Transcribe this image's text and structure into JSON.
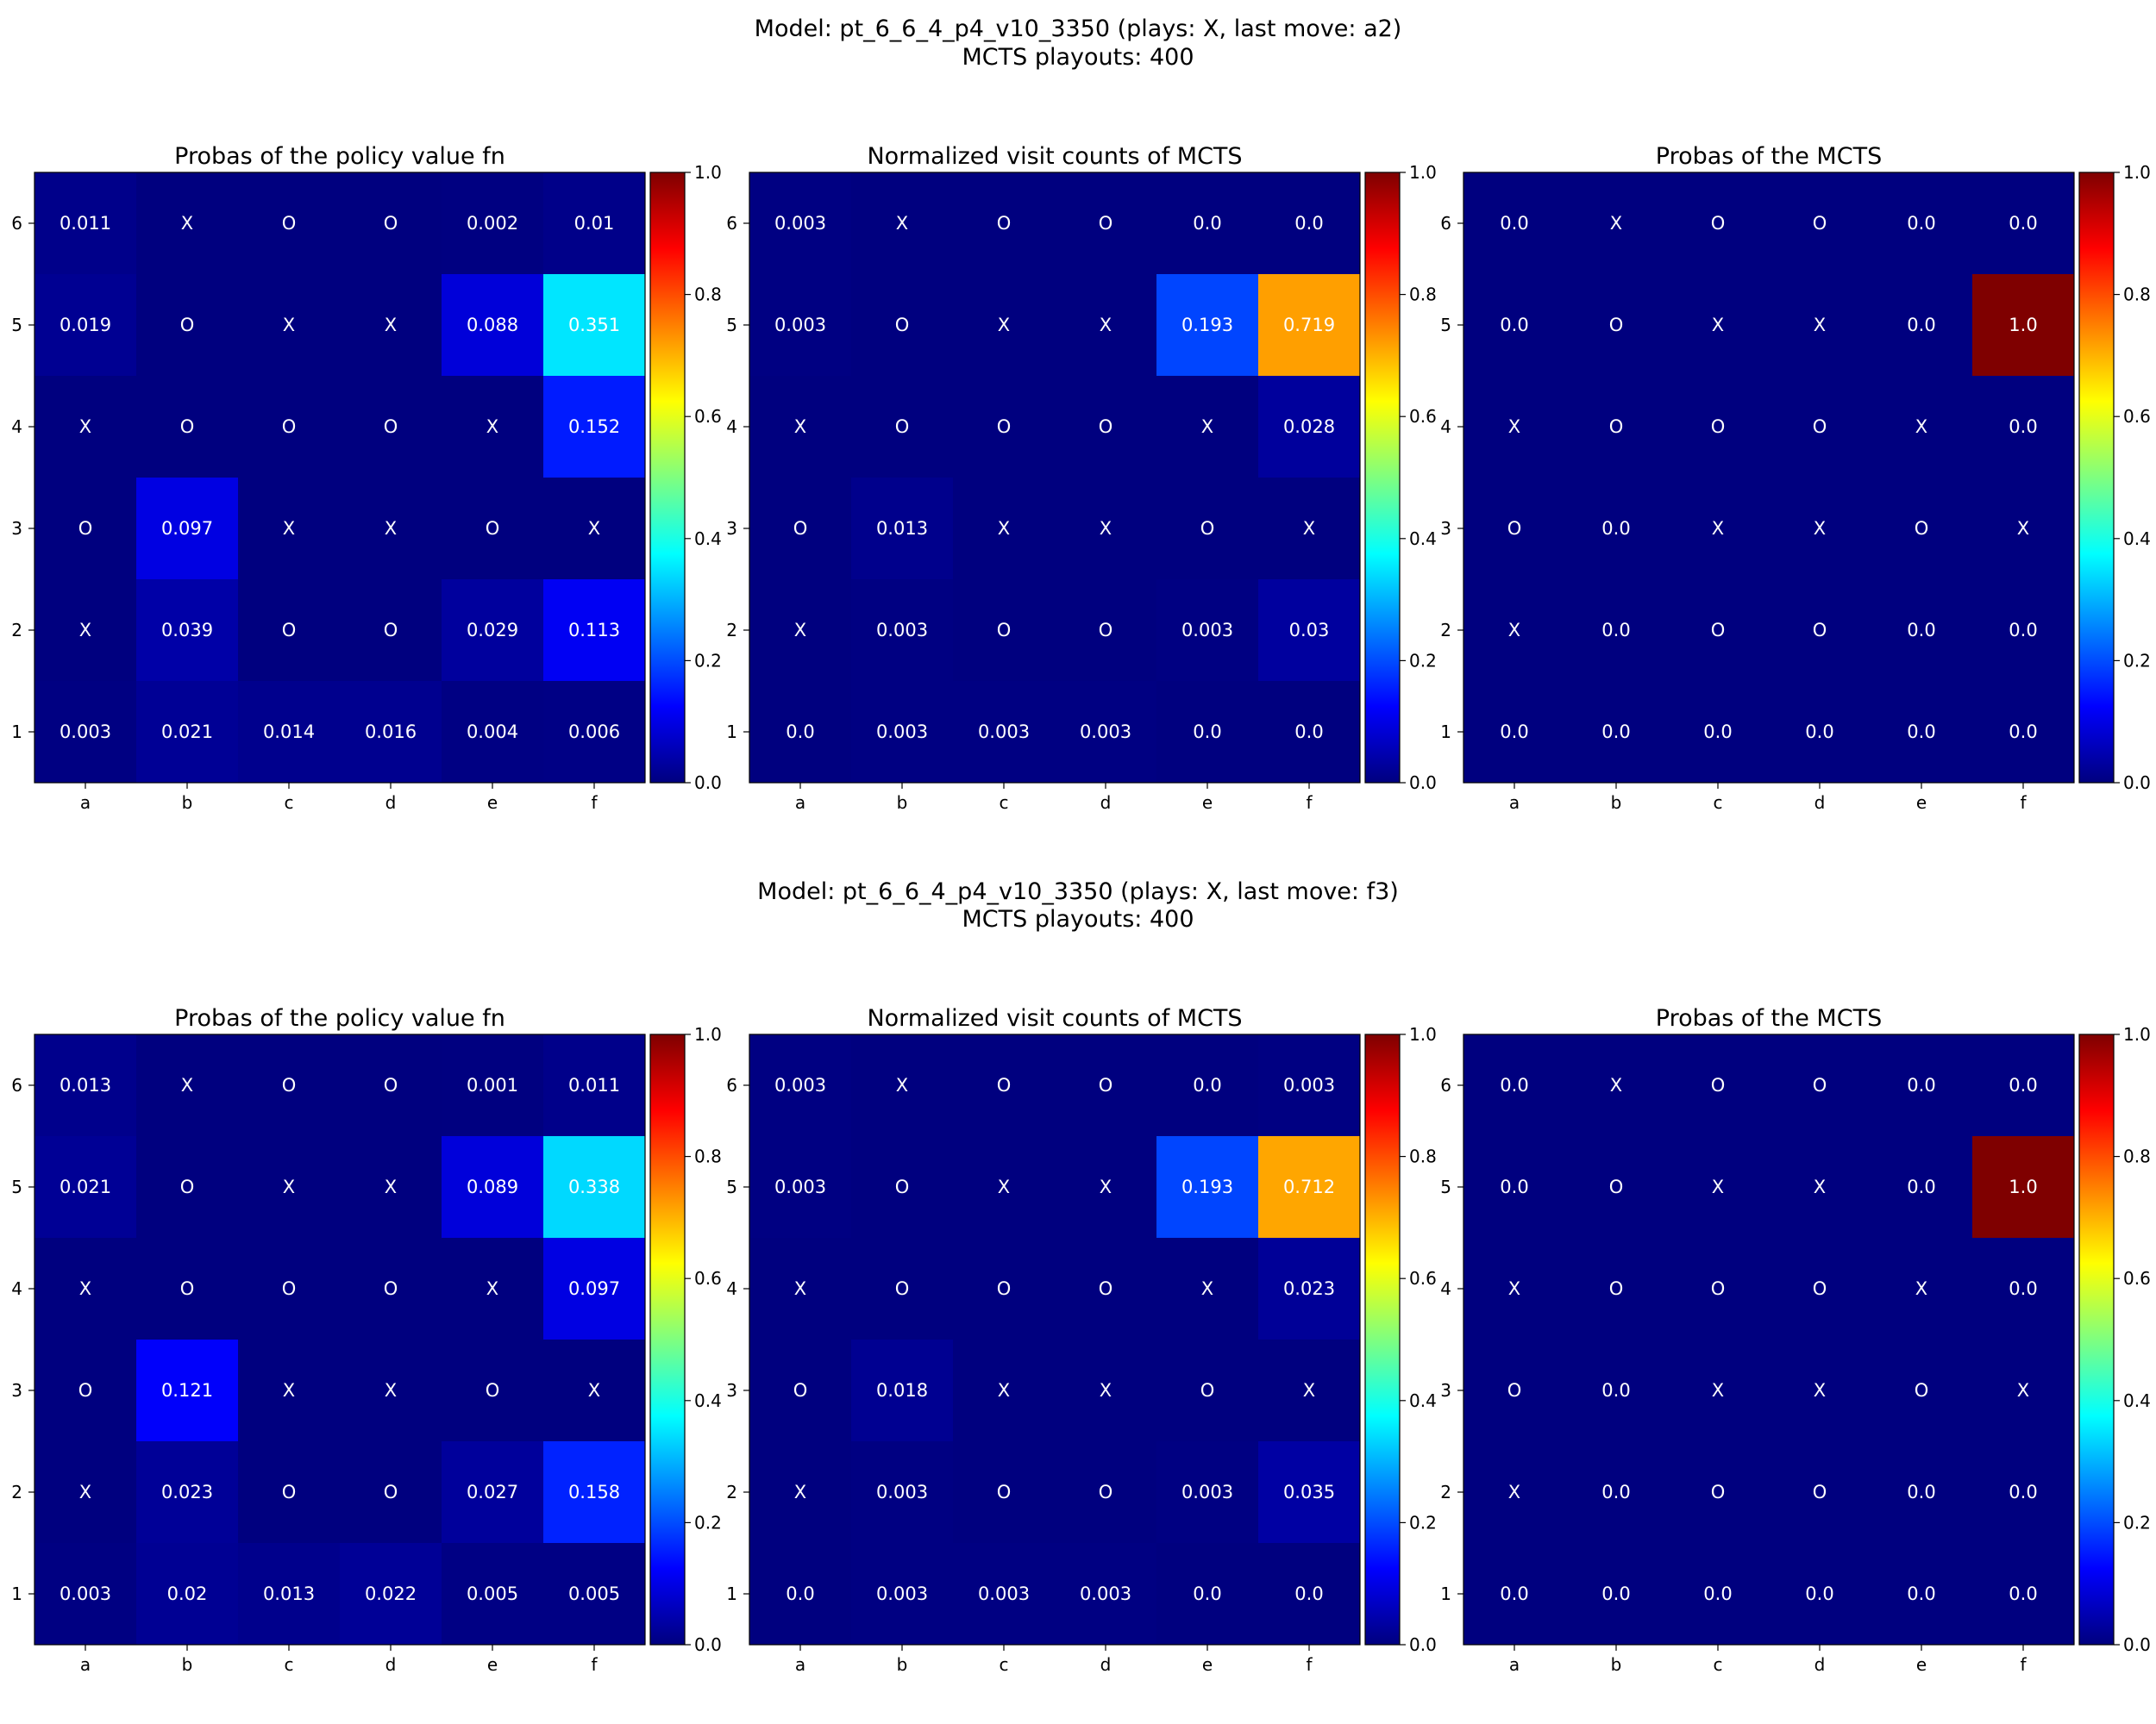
{
  "figure": {
    "rows": [
      {
        "suptitle_lines": [
          "Model: pt_6_6_4_p4_v10_3350 (plays: X, last move: a2)",
          "MCTS playouts: 400"
        ]
      },
      {
        "suptitle_lines": [
          "Model: pt_6_6_4_p4_v10_3350 (plays: X, last move: f3)",
          "MCTS playouts: 400"
        ]
      }
    ]
  },
  "colormap": {
    "name": "jet",
    "stops": [
      "#00007f",
      "#0000ff",
      "#007fff",
      "#00ffff",
      "#7fff7f",
      "#ffff00",
      "#ff7f00",
      "#ff0000",
      "#7f0000"
    ]
  },
  "chart_data": [
    {
      "type": "heatmap",
      "title": "Probas of the policy value fn",
      "x_labels": [
        "a",
        "b",
        "c",
        "d",
        "e",
        "f"
      ],
      "y_labels": [
        "6",
        "5",
        "4",
        "3",
        "2",
        "1"
      ],
      "colorbar": {
        "range": [
          0,
          1
        ],
        "ticks": [
          "0.0",
          "0.2",
          "0.4",
          "0.6",
          "0.8",
          "1.0"
        ]
      },
      "cells": [
        [
          "0.011",
          "X",
          "O",
          "O",
          "0.002",
          "0.01"
        ],
        [
          "0.019",
          "O",
          "X",
          "X",
          "0.088",
          "0.351"
        ],
        [
          "X",
          "O",
          "O",
          "O",
          "X",
          "0.152"
        ],
        [
          "O",
          "0.097",
          "X",
          "X",
          "O",
          "X"
        ],
        [
          "X",
          "0.039",
          "O",
          "O",
          "0.029",
          "0.113"
        ],
        [
          "0.003",
          "0.021",
          "0.014",
          "0.016",
          "0.004",
          "0.006"
        ]
      ]
    },
    {
      "type": "heatmap",
      "title": "Normalized visit counts of MCTS",
      "x_labels": [
        "a",
        "b",
        "c",
        "d",
        "e",
        "f"
      ],
      "y_labels": [
        "6",
        "5",
        "4",
        "3",
        "2",
        "1"
      ],
      "colorbar": {
        "range": [
          0,
          1
        ],
        "ticks": [
          "0.0",
          "0.2",
          "0.4",
          "0.6",
          "0.8",
          "1.0"
        ]
      },
      "cells": [
        [
          "0.003",
          "X",
          "O",
          "O",
          "0.0",
          "0.0"
        ],
        [
          "0.003",
          "O",
          "X",
          "X",
          "0.193",
          "0.719"
        ],
        [
          "X",
          "O",
          "O",
          "O",
          "X",
          "0.028"
        ],
        [
          "O",
          "0.013",
          "X",
          "X",
          "O",
          "X"
        ],
        [
          "X",
          "0.003",
          "O",
          "O",
          "0.003",
          "0.03"
        ],
        [
          "0.0",
          "0.003",
          "0.003",
          "0.003",
          "0.0",
          "0.0"
        ]
      ]
    },
    {
      "type": "heatmap",
      "title": "Probas of the MCTS",
      "x_labels": [
        "a",
        "b",
        "c",
        "d",
        "e",
        "f"
      ],
      "y_labels": [
        "6",
        "5",
        "4",
        "3",
        "2",
        "1"
      ],
      "colorbar": {
        "range": [
          0,
          1
        ],
        "ticks": [
          "0.0",
          "0.2",
          "0.4",
          "0.6",
          "0.8",
          "1.0"
        ]
      },
      "cells": [
        [
          "0.0",
          "X",
          "O",
          "O",
          "0.0",
          "0.0"
        ],
        [
          "0.0",
          "O",
          "X",
          "X",
          "0.0",
          "1.0"
        ],
        [
          "X",
          "O",
          "O",
          "O",
          "X",
          "0.0"
        ],
        [
          "O",
          "0.0",
          "X",
          "X",
          "O",
          "X"
        ],
        [
          "X",
          "0.0",
          "O",
          "O",
          "0.0",
          "0.0"
        ],
        [
          "0.0",
          "0.0",
          "0.0",
          "0.0",
          "0.0",
          "0.0"
        ]
      ]
    },
    {
      "type": "heatmap",
      "title": "Probas of the policy value fn",
      "x_labels": [
        "a",
        "b",
        "c",
        "d",
        "e",
        "f"
      ],
      "y_labels": [
        "6",
        "5",
        "4",
        "3",
        "2",
        "1"
      ],
      "colorbar": {
        "range": [
          0,
          1
        ],
        "ticks": [
          "0.0",
          "0.2",
          "0.4",
          "0.6",
          "0.8",
          "1.0"
        ]
      },
      "cells": [
        [
          "0.013",
          "X",
          "O",
          "O",
          "0.001",
          "0.011"
        ],
        [
          "0.021",
          "O",
          "X",
          "X",
          "0.089",
          "0.338"
        ],
        [
          "X",
          "O",
          "O",
          "O",
          "X",
          "0.097"
        ],
        [
          "O",
          "0.121",
          "X",
          "X",
          "O",
          "X"
        ],
        [
          "X",
          "0.023",
          "O",
          "O",
          "0.027",
          "0.158"
        ],
        [
          "0.003",
          "0.02",
          "0.013",
          "0.022",
          "0.005",
          "0.005"
        ]
      ]
    },
    {
      "type": "heatmap",
      "title": "Normalized visit counts of MCTS",
      "x_labels": [
        "a",
        "b",
        "c",
        "d",
        "e",
        "f"
      ],
      "y_labels": [
        "6",
        "5",
        "4",
        "3",
        "2",
        "1"
      ],
      "colorbar": {
        "range": [
          0,
          1
        ],
        "ticks": [
          "0.0",
          "0.2",
          "0.4",
          "0.6",
          "0.8",
          "1.0"
        ]
      },
      "cells": [
        [
          "0.003",
          "X",
          "O",
          "O",
          "0.0",
          "0.003"
        ],
        [
          "0.003",
          "O",
          "X",
          "X",
          "0.193",
          "0.712"
        ],
        [
          "X",
          "O",
          "O",
          "O",
          "X",
          "0.023"
        ],
        [
          "O",
          "0.018",
          "X",
          "X",
          "O",
          "X"
        ],
        [
          "X",
          "0.003",
          "O",
          "O",
          "0.003",
          "0.035"
        ],
        [
          "0.0",
          "0.003",
          "0.003",
          "0.003",
          "0.0",
          "0.0"
        ]
      ]
    },
    {
      "type": "heatmap",
      "title": "Probas of the MCTS",
      "x_labels": [
        "a",
        "b",
        "c",
        "d",
        "e",
        "f"
      ],
      "y_labels": [
        "6",
        "5",
        "4",
        "3",
        "2",
        "1"
      ],
      "colorbar": {
        "range": [
          0,
          1
        ],
        "ticks": [
          "0.0",
          "0.2",
          "0.4",
          "0.6",
          "0.8",
          "1.0"
        ]
      },
      "cells": [
        [
          "0.0",
          "X",
          "O",
          "O",
          "0.0",
          "0.0"
        ],
        [
          "0.0",
          "O",
          "X",
          "X",
          "0.0",
          "1.0"
        ],
        [
          "X",
          "O",
          "O",
          "O",
          "X",
          "0.0"
        ],
        [
          "O",
          "0.0",
          "X",
          "X",
          "O",
          "X"
        ],
        [
          "X",
          "0.0",
          "O",
          "O",
          "0.0",
          "0.0"
        ],
        [
          "0.0",
          "0.0",
          "0.0",
          "0.0",
          "0.0",
          "0.0"
        ]
      ]
    }
  ]
}
